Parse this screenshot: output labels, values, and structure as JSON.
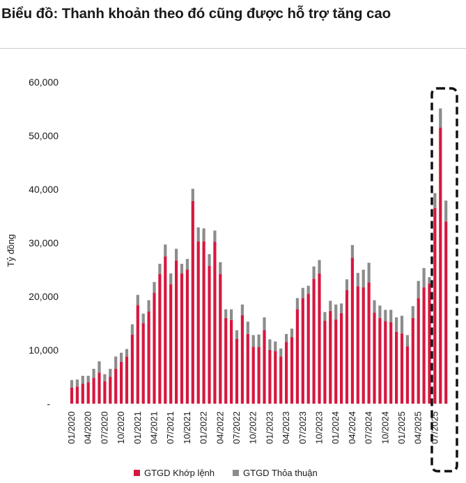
{
  "title": "Biểu đồ: Thanh khoản theo đó cũng được hỗ trợ tăng cao",
  "colors": {
    "order_matching": "#d7173f",
    "negotiated": "#8c8c8c",
    "highlight_box": "#111111"
  },
  "chart_data": {
    "type": "bar",
    "stacked": true,
    "title": "Biểu đồ: Thanh khoản theo đó cũng được hỗ trợ tăng cao",
    "xlabel": "",
    "ylabel": "Tỷ đồng",
    "ylim": [
      0,
      60000
    ],
    "y_ticks": [
      0,
      10000,
      20000,
      30000,
      40000,
      50000,
      60000
    ],
    "y_tick_labels": [
      "-",
      "10,000",
      "20,000",
      "30,000",
      "40,000",
      "50,000",
      "60,000"
    ],
    "x_tick_labels": [
      "01/2020",
      "04/2020",
      "07/2020",
      "10/2020",
      "01/2021",
      "04/2021",
      "07/2021",
      "10/2021",
      "01/2022",
      "04/2022",
      "07/2022",
      "10/2022",
      "01/2023",
      "04/2023",
      "07/2023",
      "10/2023",
      "01/2024",
      "04/2024",
      "07/2024",
      "10/2024",
      "01/2025",
      "04/2025",
      "07/2025"
    ],
    "categories": [
      "01/2020",
      "02/2020",
      "03/2020",
      "04/2020",
      "05/2020",
      "06/2020",
      "07/2020",
      "08/2020",
      "09/2020",
      "10/2020",
      "11/2020",
      "12/2020",
      "01/2021",
      "02/2021",
      "03/2021",
      "04/2021",
      "05/2021",
      "06/2021",
      "07/2021",
      "08/2021",
      "09/2021",
      "10/2021",
      "11/2021",
      "12/2021",
      "01/2022",
      "02/2022",
      "03/2022",
      "04/2022",
      "05/2022",
      "06/2022",
      "07/2022",
      "08/2022",
      "09/2022",
      "10/2022",
      "11/2022",
      "12/2022",
      "01/2023",
      "02/2023",
      "03/2023",
      "04/2023",
      "05/2023",
      "06/2023",
      "07/2023",
      "08/2023",
      "09/2023",
      "10/2023",
      "11/2023",
      "12/2023",
      "01/2024",
      "02/2024",
      "03/2024",
      "04/2024",
      "05/2024",
      "06/2024",
      "07/2024",
      "08/2024",
      "09/2024",
      "10/2024",
      "11/2024",
      "12/2024",
      "01/2025",
      "02/2025",
      "03/2025",
      "04/2025",
      "05/2025",
      "06/2025",
      "07/2025",
      "08/2025",
      "09/2025"
    ],
    "series": [
      {
        "name": "GTGD Khớp lệnh",
        "values": [
          3000,
          3200,
          3700,
          4000,
          4800,
          5800,
          4200,
          5000,
          6500,
          7800,
          8800,
          12900,
          18400,
          15000,
          17200,
          20700,
          24200,
          27500,
          22300,
          26700,
          24300,
          25000,
          37800,
          30300,
          30300,
          25700,
          30200,
          24200,
          16000,
          15600,
          12100,
          16500,
          13000,
          10600,
          10600,
          13700,
          10000,
          9800,
          8800,
          11500,
          12400,
          17600,
          19700,
          20500,
          23300,
          24300,
          15500,
          17300,
          15700,
          16900,
          21200,
          27200,
          21900,
          21700,
          22600,
          17000,
          16000,
          15400,
          15200,
          13400,
          13100,
          10700,
          16000,
          19700,
          21700,
          22400,
          36500,
          51500,
          34000
        ]
      },
      {
        "name": "GTGD Thỏa thuận",
        "values": [
          1400,
          1300,
          1500,
          1200,
          1700,
          2100,
          1300,
          1500,
          2300,
          1700,
          1400,
          1900,
          1900,
          1800,
          2100,
          2000,
          1900,
          2200,
          2000,
          2200,
          1800,
          2000,
          2300,
          2600,
          2400,
          2200,
          2100,
          2200,
          1600,
          2000,
          1600,
          2000,
          2300,
          2200,
          2300,
          2400,
          2000,
          1800,
          1500,
          1500,
          1600,
          2100,
          1900,
          1500,
          2300,
          2500,
          1600,
          1900,
          2800,
          1800,
          2000,
          2400,
          2500,
          3300,
          3700,
          2300,
          2300,
          2100,
          2300,
          2700,
          3300,
          2100,
          2200,
          3200,
          3600,
          1200,
          2800,
          3600,
          3900
        ]
      }
    ]
  },
  "legend": {
    "order_matching_label": "GTGD Khớp lệnh",
    "negotiated_label": "GTGD Thỏa thuận"
  }
}
